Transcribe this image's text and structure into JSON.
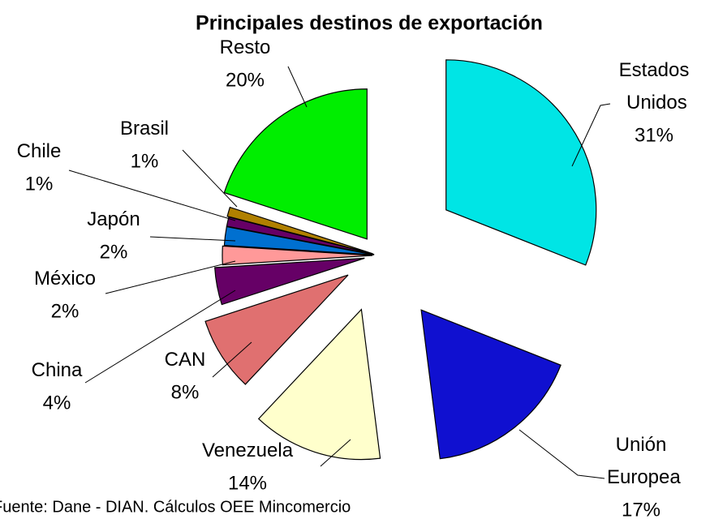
{
  "chart_data": {
    "type": "pie",
    "title": "Principales destinos de exportación",
    "source": "Fuente: Dane - DIAN. Cálculos OEE Mincomercio",
    "categories": [
      "Estados Unidos",
      "Unión Europea",
      "Venezuela",
      "CAN",
      "China",
      "México",
      "Japón",
      "Chile",
      "Brasil",
      "Resto"
    ],
    "values": [
      31,
      17,
      14,
      8,
      4,
      2,
      2,
      1,
      1,
      20
    ],
    "value_labels": [
      "31%",
      "17%",
      "14%",
      "8%",
      "4%",
      "2%",
      "2%",
      "1%",
      "1%",
      "20%"
    ],
    "colors": [
      "#00e5e5",
      "#1010d0",
      "#ffffcc",
      "#e07070",
      "#660066",
      "#ff9999",
      "#0070d0",
      "#660066",
      "#b08000",
      "#00ee00"
    ]
  }
}
